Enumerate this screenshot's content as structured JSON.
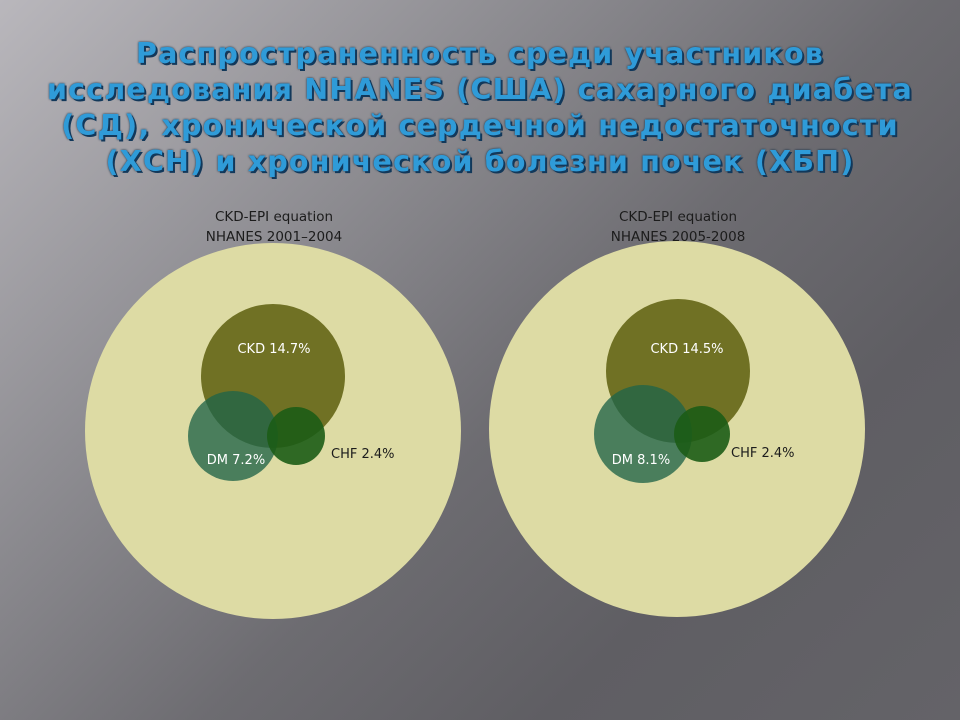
{
  "slide": {
    "title": "Распространенность среди участников исследования NHANES (США) сахарного диабета (СД), хронической сердечной недостаточности (ХСН) и хронической болезни почек (ХБП)"
  },
  "colors": {
    "population": "#dddba4",
    "ckd": "#6f7022",
    "dm": "#2d6b4d",
    "chf": "#265c1c",
    "title": "#2f9bd8"
  },
  "diagrams": [
    {
      "caption_line1": "CKD-EPI equation",
      "caption_line2": "NHANES 2001–2004",
      "ckd_label": "CKD 14.7%",
      "dm_label": "DM 7.2%",
      "chf_label": "CHF 2.4%",
      "ckd_pct": 14.7,
      "dm_pct": 7.2,
      "chf_pct": 2.4
    },
    {
      "caption_line1": "CKD-EPI equation",
      "caption_line2": "NHANES 2005-2008",
      "ckd_label": "CKD 14.5%",
      "dm_label": "DM 8.1%",
      "chf_label": "CHF 2.4%",
      "ckd_pct": 14.5,
      "dm_pct": 8.1,
      "chf_pct": 2.4
    }
  ]
}
